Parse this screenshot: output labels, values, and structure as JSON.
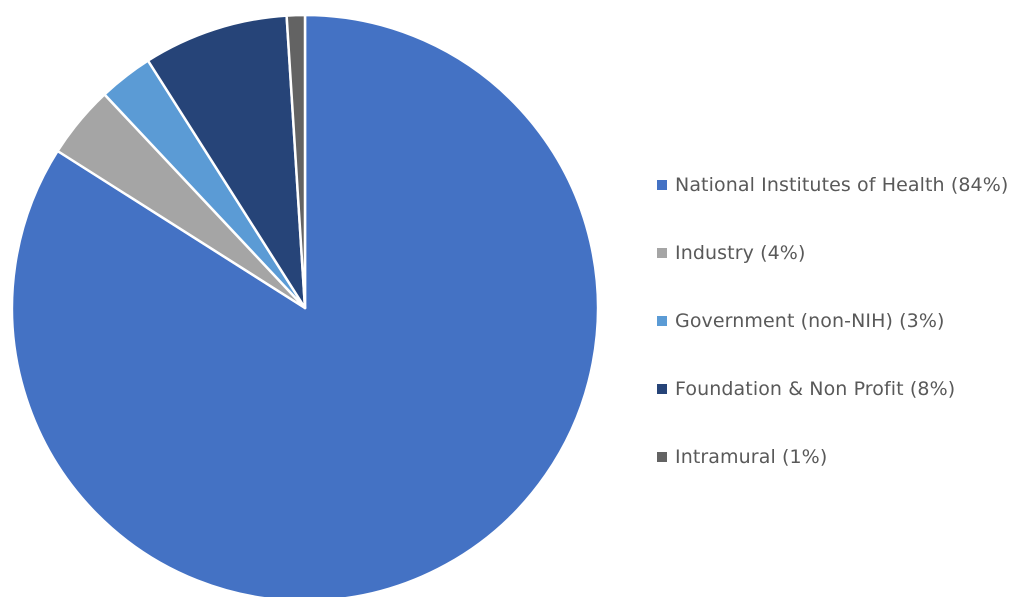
{
  "chart_data": {
    "type": "pie",
    "title": "",
    "legend_position": "right",
    "start_angle_deg": 0,
    "direction": "clockwise",
    "slices": [
      {
        "label": "National Institutes of Health (84%)",
        "value": 84,
        "color": "#4472C4"
      },
      {
        "label": "Industry (4%)",
        "value": 4,
        "color": "#A5A5A5"
      },
      {
        "label": "Government (non-NIH) (3%)",
        "value": 3,
        "color": "#5B9BD5"
      },
      {
        "label": "Foundation & Non Profit (8%)",
        "value": 8,
        "color": "#264478"
      },
      {
        "label": "Intramural (1%)",
        "value": 1,
        "color": "#636363"
      }
    ]
  }
}
